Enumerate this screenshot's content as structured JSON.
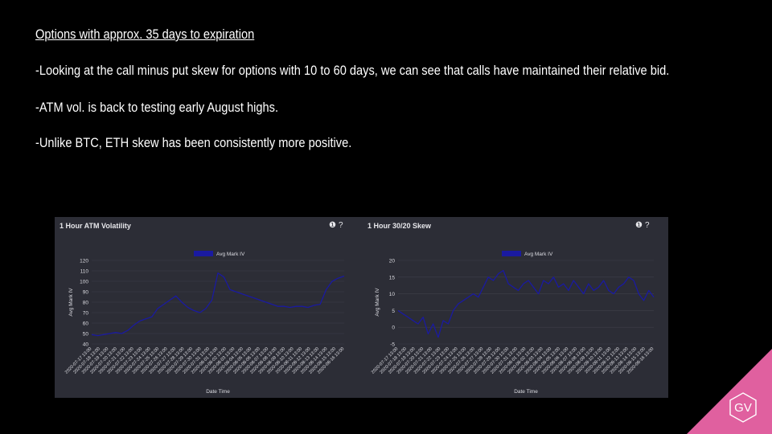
{
  "slide": {
    "heading": "Options with approx. 35 days to expiration",
    "bullets": [
      "-Looking at the call minus put skew for options with 10 to 60 days, we can see that calls have maintained their relative bid.",
      "-ATM vol. is back to testing early August highs.",
      "-Unlike BTC, ETH skew has been consistently more positive."
    ]
  },
  "logo": {
    "text": "GV",
    "color": "#e0609f"
  },
  "panel_icons": {
    "info": "info-icon",
    "help": "help-icon",
    "info_glyph": "❶",
    "help_glyph": "?"
  },
  "colors": {
    "series": "#1a1aa0",
    "panel_bg": "#2c2d36",
    "grid": "#3e3f4a",
    "text": "#dcdce2"
  },
  "chart_data": [
    {
      "type": "line",
      "title": "1 Hour ATM Volatility",
      "xlabel": "Date Time",
      "ylabel": "Avg Mark IV",
      "legend": "top-center",
      "grid": true,
      "ylim": [
        40,
        120
      ],
      "yticks": [
        40,
        50,
        60,
        70,
        80,
        90,
        100,
        110,
        120
      ],
      "x_ticks": [
        "2020-07-17 13:00",
        "2020-07-18 13:00",
        "2020-07-19 13:00",
        "2020-07-20 13:00",
        "2020-07-21 13:00",
        "2020-07-22 13:00",
        "2020-07-23 13:00",
        "2020-07-24 13:00",
        "2020-07-25 13:00",
        "2020-07-26 13:00",
        "2020-07-27 13:00",
        "2020-07-28 13:00",
        "2020-07-29 13:00",
        "2020-07-30 13:00",
        "2020-07-31 13:00",
        "2020-08-01 13:00",
        "2020-08-02 13:00",
        "2020-08-03 13:00",
        "2020-08-04 13:00",
        "2020-08-05 13:00",
        "2020-08-06 13:00",
        "2020-08-07 13:00",
        "2020-08-08 13:00",
        "2020-08-09 13:00",
        "2020-08-10 13:00",
        "2020-08-11 13:00",
        "2020-08-12 13:00",
        "2020-08-13 13:00",
        "2020-08-14 13:00",
        "2020-08-15 13:00",
        "2020-08-16 13:00"
      ],
      "series": [
        {
          "name": "Avg Mark IV",
          "values": [
            49,
            48,
            49,
            50,
            51,
            50,
            53,
            58,
            62,
            64,
            66,
            74,
            78,
            82,
            86,
            80,
            75,
            72,
            70,
            74,
            82,
            108,
            104,
            92,
            90,
            88,
            86,
            84,
            82,
            80,
            78,
            76,
            76,
            75,
            76,
            76,
            75,
            77,
            78,
            92,
            100,
            103,
            105
          ]
        }
      ]
    },
    {
      "type": "line",
      "title": "1 Hour 30/20 Skew",
      "xlabel": "Date Time",
      "ylabel": "Avg Mark IV",
      "legend": "top-center",
      "grid": true,
      "ylim": [
        -5,
        20
      ],
      "yticks": [
        -5,
        0,
        5,
        10,
        15,
        20
      ],
      "x_ticks": [
        "2020-07-17 13:00",
        "2020-07-18 13:00",
        "2020-07-19 13:00",
        "2020-07-20 13:00",
        "2020-07-21 13:00",
        "2020-07-22 13:00",
        "2020-07-23 13:00",
        "2020-07-24 13:00",
        "2020-07-25 13:00",
        "2020-07-26 13:00",
        "2020-07-27 13:00",
        "2020-07-28 13:00",
        "2020-07-29 13:00",
        "2020-07-30 13:00",
        "2020-07-31 13:00",
        "2020-08-01 13:00",
        "2020-08-02 13:00",
        "2020-08-03 13:00",
        "2020-08-04 13:00",
        "2020-08-05 13:00",
        "2020-08-06 13:00",
        "2020-08-07 13:00",
        "2020-08-08 13:00",
        "2020-08-09 13:00",
        "2020-08-10 13:00",
        "2020-08-11 13:00",
        "2020-08-12 13:00",
        "2020-08-13 13:00",
        "2020-08-14 13:00",
        "2020-08-15 13:00",
        "2020-08-16 13:00"
      ],
      "series": [
        {
          "name": "Avg Mark IV",
          "values": [
            5,
            4,
            3,
            2,
            1,
            3,
            -2,
            1,
            -3,
            2,
            1,
            5,
            7,
            8,
            9,
            10,
            9,
            12,
            15,
            14,
            16,
            17,
            13,
            12,
            11,
            13,
            14,
            12,
            10,
            14,
            13,
            15,
            12,
            13,
            11,
            14,
            12,
            10,
            13,
            11,
            12,
            14,
            11,
            10,
            12,
            13,
            15,
            14,
            10,
            8,
            11,
            9
          ]
        }
      ]
    }
  ]
}
